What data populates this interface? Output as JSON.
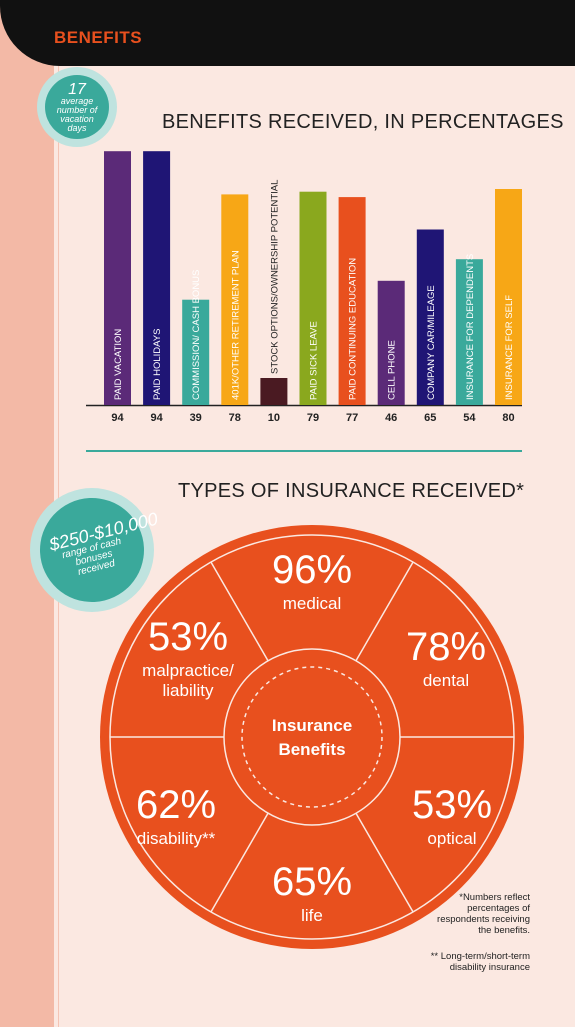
{
  "header": {
    "title": "BENEFITS"
  },
  "badge_vacation": {
    "number": "17",
    "text": "average number of vacation days"
  },
  "chart_title": "BENEFITS RECEIVED, IN PERCENTAGES",
  "chart_data": {
    "type": "bar",
    "title": "BENEFITS RECEIVED, IN PERCENTAGES",
    "categories": [
      "PAID VACATION",
      "PAID HOLIDAYS",
      "COMMISSION/ CASH BONUS",
      "401K/OTHER RETIREMENT PLAN",
      "STOCK OPTIONS/OWNERSHIP POTENTIAL",
      "PAID SICK LEAVE",
      "PAID CONTINUING EDUCATION",
      "CELL PHONE",
      "COMPANY CAR/MILEAGE",
      "INSURANCE FOR DEPENDENTS",
      "INSURANCE FOR SELF"
    ],
    "values": [
      94,
      94,
      39,
      78,
      10,
      79,
      77,
      46,
      65,
      54,
      80
    ],
    "colors": [
      "#5b2a78",
      "#1f1575",
      "#3aa99b",
      "#f7a716",
      "#4a1a22",
      "#8aa81e",
      "#e8501e",
      "#5b2a78",
      "#1f1575",
      "#3aa99b",
      "#f7a716"
    ],
    "ylim": [
      0,
      100
    ]
  },
  "insurance_title": "TYPES OF INSURANCE RECEIVED*",
  "badge_bonus": {
    "amount": "$250-$10,000",
    "text": "range of cash bonuses received"
  },
  "wheel": {
    "center": "Insurance Benefits",
    "segments": [
      {
        "pct": "96%",
        "label": "medical"
      },
      {
        "pct": "78%",
        "label": "dental"
      },
      {
        "pct": "53%",
        "label": "optical"
      },
      {
        "pct": "65%",
        "label": "life"
      },
      {
        "pct": "62%",
        "label": "disability**"
      },
      {
        "pct": "53%",
        "label": "malpractice/ liability"
      }
    ]
  },
  "footnotes": {
    "numbers": "*Numbers reflect percentages of respondents receiving the benefits.",
    "disability": "** Long-term/short-term disability insurance"
  }
}
